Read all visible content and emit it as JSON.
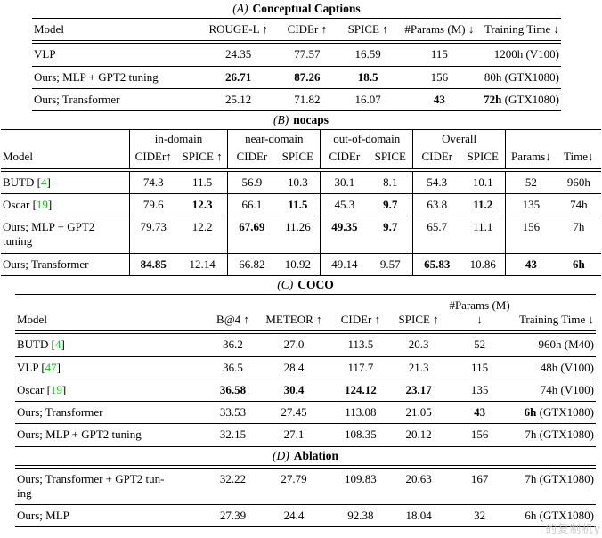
{
  "page": {
    "background": "#ffffff",
    "text_color": "#000000",
    "rule_color": "#000000",
    "citation_color": "#00cc00",
    "watermark": "的复制机y"
  },
  "tables": [
    {
      "id": "a",
      "label": "(A)",
      "title": "Conceptual Captions",
      "headers": [
        "Model",
        "ROUGE-L ↑",
        "CIDEr ↑",
        "SPICE ↑",
        "#Params (M) ↓",
        "Training Time ↓"
      ],
      "rows": [
        [
          "VLP",
          "24.35",
          "77.57",
          "16.59",
          "115",
          "1200h (V100)"
        ],
        [
          "Ours; MLP + GPT2 tuning",
          "**26.71**",
          "**87.26**",
          "**18.5**",
          "156",
          "80h (GTX1080)"
        ],
        [
          "Ours; Transformer",
          "25.12",
          "71.82",
          "16.07",
          "**43**",
          "**72h** (GTX1080)"
        ]
      ]
    },
    {
      "id": "b",
      "label": "(B)",
      "title": "nocaps",
      "groups": [
        {
          "label": "",
          "span": 1
        },
        {
          "label": "in-domain",
          "span": 2
        },
        {
          "label": "near-domain",
          "span": 2
        },
        {
          "label": "out-of-domain",
          "span": 2
        },
        {
          "label": "Overall",
          "span": 2
        },
        {
          "label": "",
          "span": 2
        }
      ],
      "headers": [
        "Model",
        "CIDEr↑",
        "SPICE ↑",
        "CIDEr",
        "SPICE",
        "CIDEr",
        "SPICE",
        "CIDEr",
        "SPICE",
        "Params↓",
        "Time↓"
      ],
      "rows": [
        [
          "BUTD [[4]]",
          "74.3",
          "11.5",
          "56.9",
          "10.3",
          "30.1",
          "8.1",
          "54.3",
          "10.1",
          "52",
          "960h"
        ],
        [
          "Oscar [[19]]",
          "79.6",
          "**12.3**",
          "66.1",
          "**11.5**",
          "45.3",
          "**9.7**",
          "63.8",
          "**11.2**",
          "135",
          "74h"
        ],
        [
          "Ours; MLP + GPT2\ntuning",
          "79.73",
          "12.2",
          "**67.69**",
          "11.26",
          "**49.35**",
          "**9.7**",
          "65.7",
          "11.1",
          "156",
          "7h"
        ],
        [
          "Ours; Transformer",
          "**84.85**",
          "12.14",
          "66.82",
          "10.92",
          "49.14",
          "9.57",
          "**65.83**",
          "10.86",
          "**43**",
          "**6h**"
        ]
      ]
    },
    {
      "id": "c",
      "label": "(C)",
      "title": "COCO",
      "headers": [
        "Model",
        "B@4 ↑",
        "METEOR ↑",
        "CIDEr ↑",
        "SPICE ↑",
        "#Params (M) ↓",
        "Training Time ↓"
      ],
      "rows": [
        [
          "BUTD [[4]]",
          "36.2",
          "27.0",
          "113.5",
          "20.3",
          "52",
          "960h (M40)"
        ],
        [
          "VLP [[47]]",
          "36.5",
          "28.4",
          "117.7",
          "21.3",
          "115",
          "48h (V100)"
        ],
        [
          "Oscar [[19]]",
          "**36.58**",
          "**30.4**",
          "**124.12**",
          "**23.17**",
          "135",
          "74h (V100)"
        ],
        [
          "Ours; Transformer",
          "33.53",
          "27.45",
          "113.08",
          "21.05",
          "**43**",
          "**6h** (GTX1080)"
        ],
        [
          "Ours; MLP + GPT2 tuning",
          "32.15",
          "27.1",
          "108.35",
          "20.12",
          "156",
          "7h (GTX1080)"
        ]
      ]
    },
    {
      "id": "d",
      "label": "(D)",
      "title": "Ablation",
      "rows": [
        [
          "Ours; Transformer + GPT2 tun-\ning",
          "32.22",
          "27.79",
          "109.83",
          "20.63",
          "167",
          "7h (GTX1080)"
        ],
        [
          "Ours; MLP",
          "27.39",
          "24.4",
          "92.38",
          "18.04",
          "32",
          "6h (GTX1080)"
        ]
      ]
    }
  ]
}
